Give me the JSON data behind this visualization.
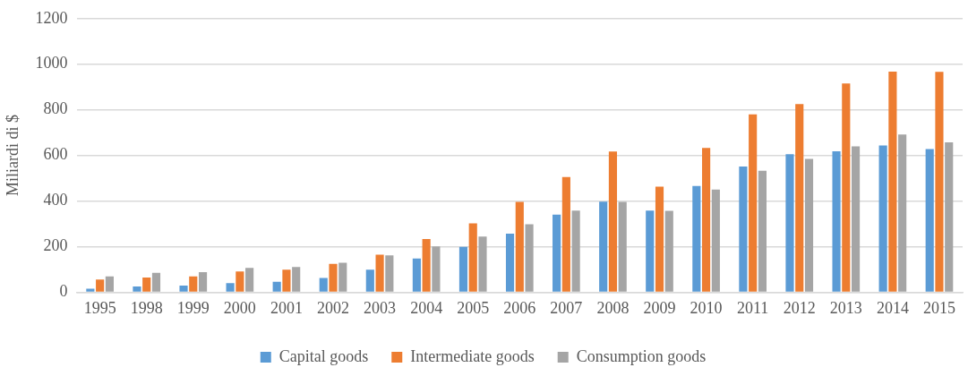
{
  "chart_data": {
    "type": "bar",
    "ylabel": "Miliardi di $",
    "categories": [
      "1995",
      "1998",
      "1999",
      "2000",
      "2001",
      "2002",
      "2003",
      "2004",
      "2005",
      "2006",
      "2007",
      "2008",
      "2009",
      "2010",
      "2011",
      "2012",
      "2013",
      "2014",
      "2015"
    ],
    "series": [
      {
        "name": "Capital goods",
        "color": "#5b9bd5",
        "values": [
          15,
          25,
          29,
          40,
          46,
          62,
          99,
          148,
          199,
          257,
          340,
          397,
          358,
          466,
          551,
          605,
          618,
          644,
          628
        ]
      },
      {
        "name": "Intermediate goods",
        "color": "#ed7d31",
        "values": [
          56,
          64,
          69,
          91,
          99,
          124,
          165,
          233,
          302,
          396,
          505,
          617,
          463,
          633,
          780,
          825,
          916,
          968,
          967
        ]
      },
      {
        "name": "Consumption goods",
        "color": "#a5a5a5",
        "values": [
          69,
          85,
          88,
          107,
          111,
          129,
          162,
          201,
          244,
          298,
          358,
          396,
          357,
          450,
          533,
          585,
          640,
          692,
          657
        ]
      }
    ],
    "ylim": [
      0,
      1200
    ],
    "yticks": [
      0,
      200,
      400,
      600,
      800,
      1000,
      1200
    ],
    "grid": "y",
    "legend": "bottom"
  }
}
